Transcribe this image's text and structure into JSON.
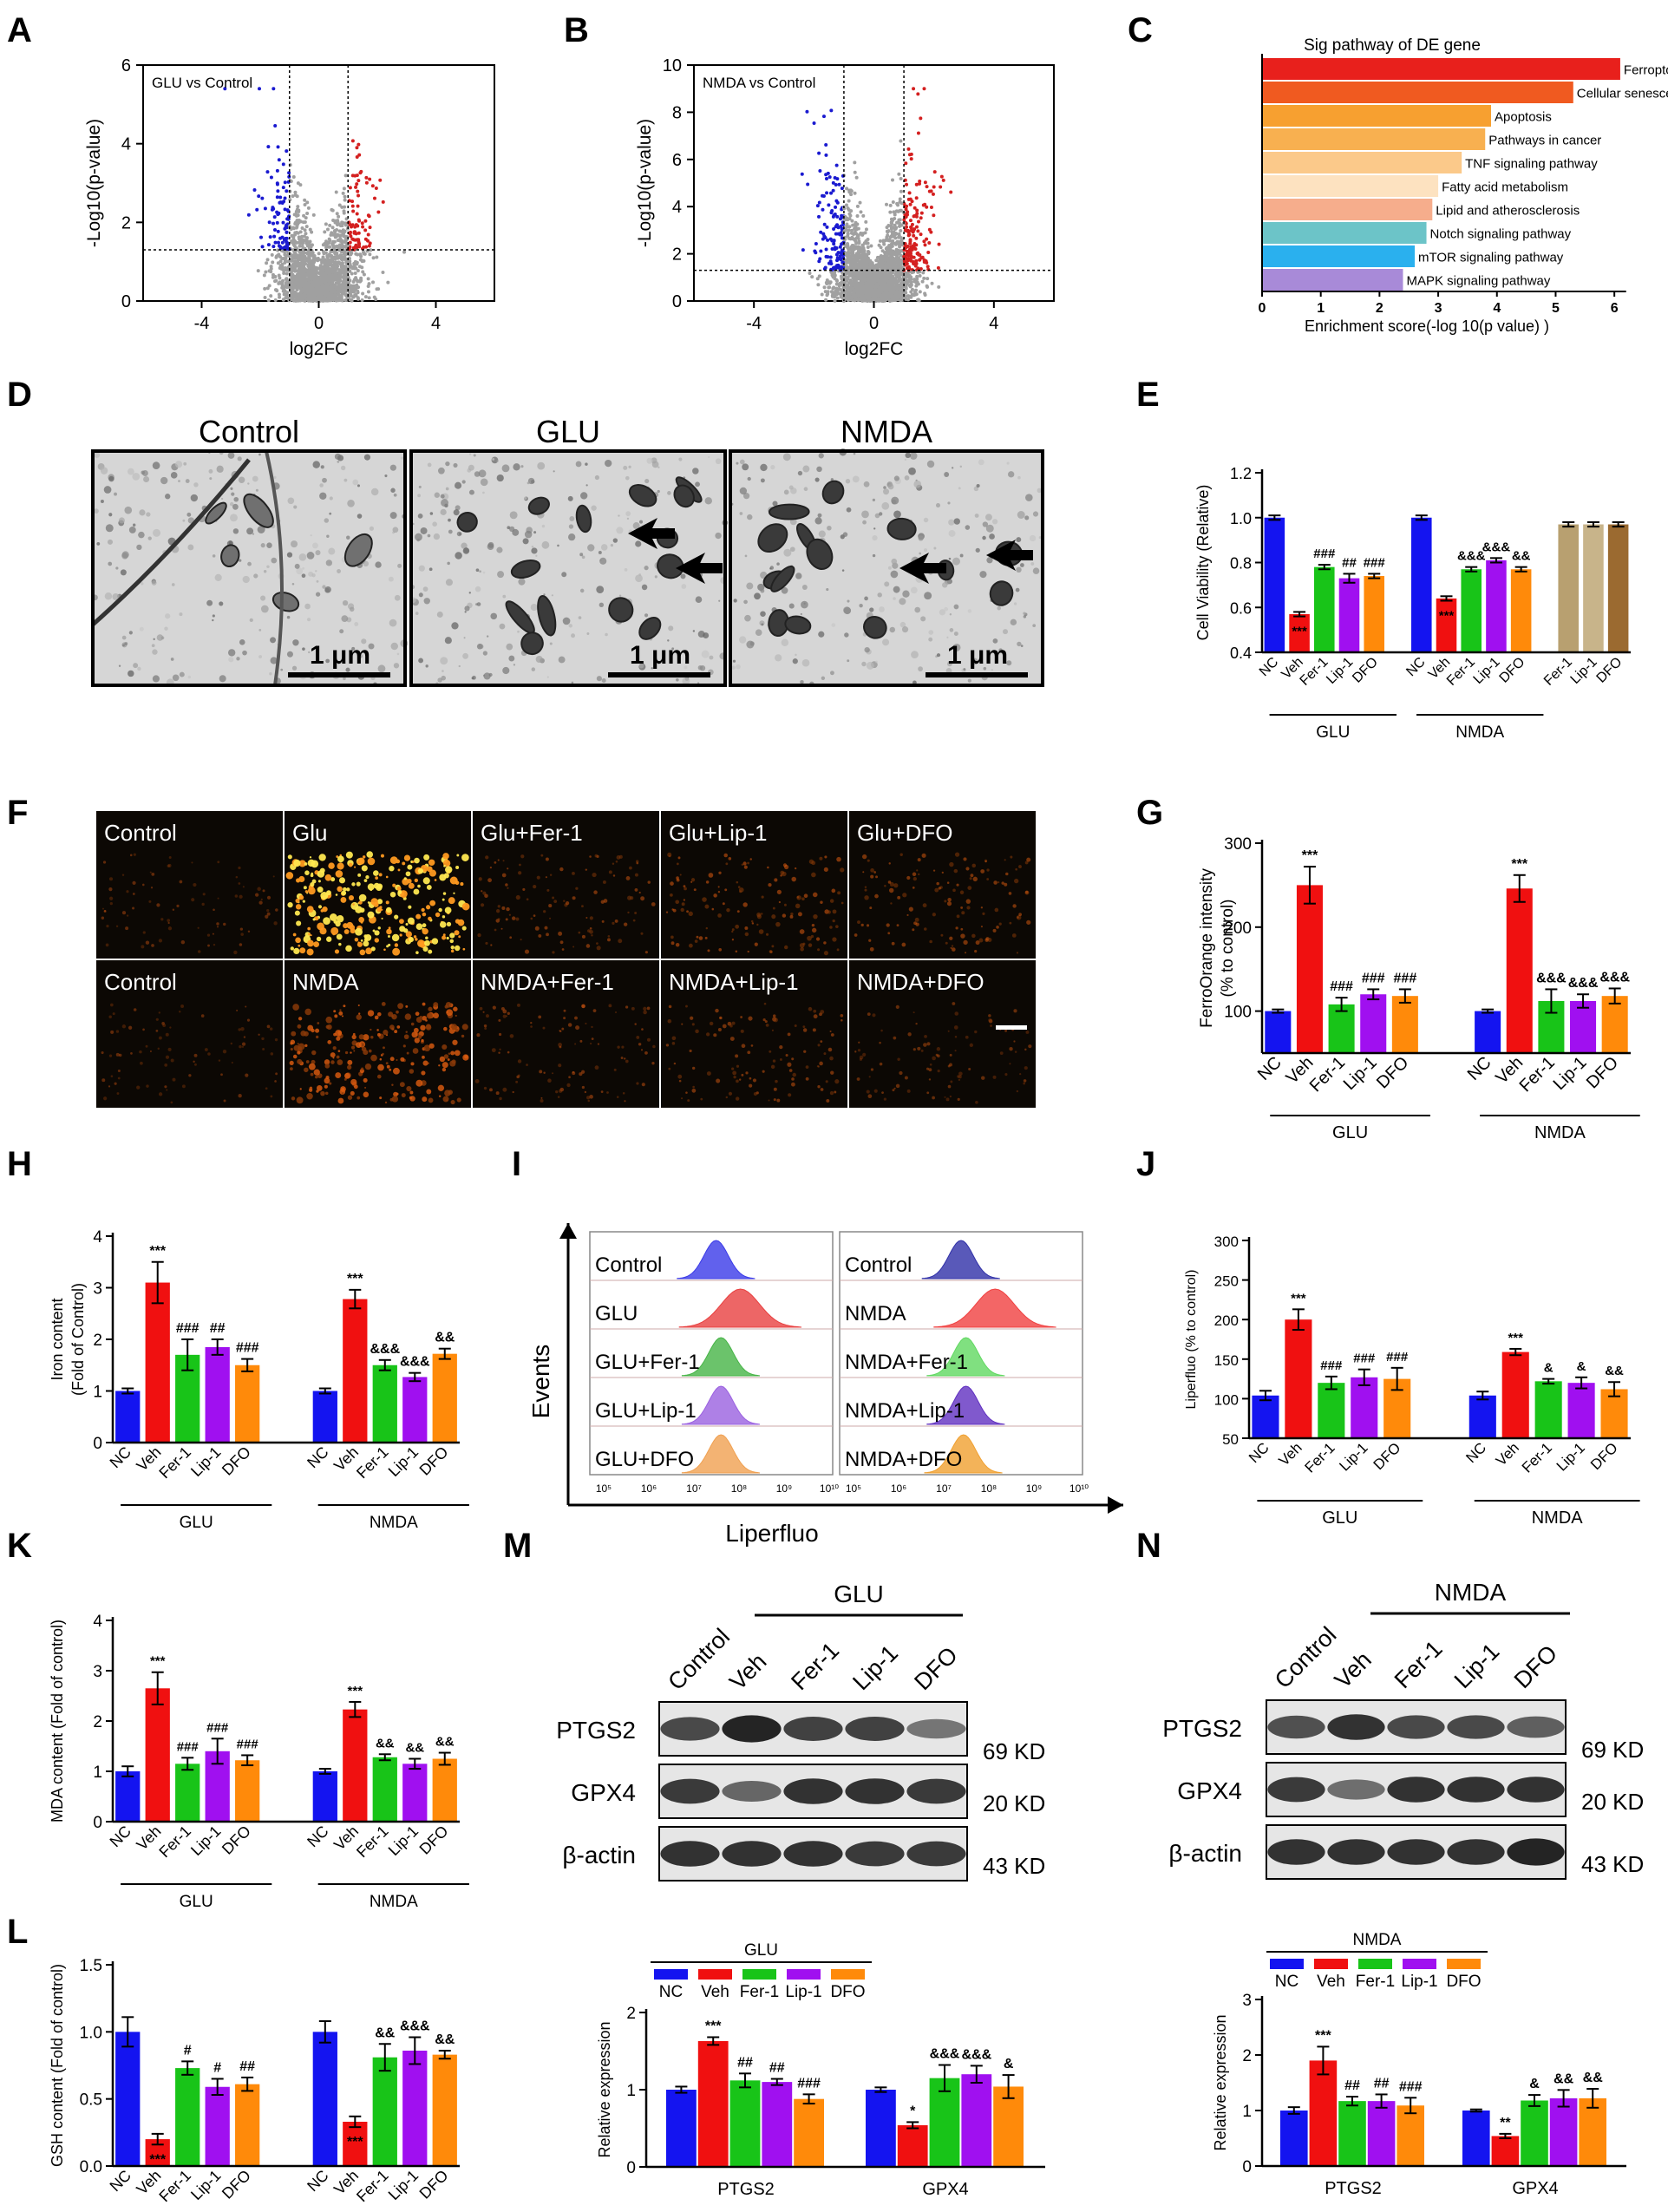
{
  "colors": {
    "nc": "#1414f0",
    "veh": "#f01010",
    "fer": "#18c418",
    "lip": "#a010f0",
    "dfo": "#ff8a0a",
    "fer_only": "#b8a070",
    "lip_only": "#c8b48a",
    "dfo_only": "#9b6a30",
    "up": "#d42020",
    "down": "#1a1ad0",
    "ns": "#a0a0a0"
  },
  "panels": {
    "A": "A",
    "B": "B",
    "C": "C",
    "D": "D",
    "E": "E",
    "F": "F",
    "G": "G",
    "H": "H",
    "I": "I",
    "J": "J",
    "K": "K",
    "L": "L",
    "M": "M",
    "N": "N"
  },
  "group_labels": {
    "glu": "GLU",
    "nmda": "NMDA"
  },
  "volcano": [
    {
      "title": "GLU vs Control",
      "xlabel": "log2FC",
      "ylabel": "-Log10(p-value)",
      "xticks": [
        "-4",
        "0",
        "4"
      ],
      "yticks": [
        "0",
        "2",
        "4",
        "6"
      ],
      "xlim": [
        -6,
        6
      ],
      "ylim": [
        0,
        6
      ]
    },
    {
      "title": "NMDA vs Control",
      "xlabel": "log2FC",
      "ylabel": "-Log10(p-value)",
      "xticks": [
        "-4",
        "0",
        "4"
      ],
      "yticks": [
        "0",
        "2",
        "4",
        "6",
        "8",
        "10"
      ],
      "xlim": [
        -6,
        6
      ],
      "ylim": [
        0,
        10
      ]
    }
  ],
  "chart_data": [
    {
      "panel": "C",
      "type": "bar",
      "orientation": "horizontal",
      "title": "Sig pathway of DE gene",
      "xlabel": "Enrichment score(-log 10(p value) )",
      "xticks": [
        "0",
        "1",
        "2",
        "3",
        "4",
        "5",
        "6"
      ],
      "xlim": [
        0,
        6.5
      ],
      "categories": [
        "Ferroptosis",
        "Cellular senescence",
        "Apoptosis",
        "Pathways in cancer",
        "TNF signaling pathway",
        "Fatty acid metabolism",
        "Lipid and atherosclerosis",
        "Notch signaling pathway",
        "mTOR signaling pathway",
        "MAPK signaling pathway"
      ],
      "values": [
        6.1,
        5.3,
        3.9,
        3.8,
        3.4,
        3.0,
        2.9,
        2.8,
        2.6,
        2.4
      ],
      "bar_colors": [
        "#e8201c",
        "#f05a20",
        "#f7a030",
        "#f8b050",
        "#fbc98a",
        "#fde2c0",
        "#f6ad8c",
        "#6cc4c8",
        "#2ab0ee",
        "#a88ad8"
      ]
    },
    {
      "panel": "E",
      "type": "bar",
      "ylabel": "Cell Viability (Relative)",
      "yticks": [
        "0.4",
        "0.6",
        "0.8",
        "1.0",
        "1.2"
      ],
      "ylim": [
        0.4,
        1.2
      ],
      "categories": [
        "NC",
        "Veh",
        "Fer-1",
        "Lip-1",
        "DFO",
        "NC",
        "Veh",
        "Fer-1",
        "Lip-1",
        "DFO",
        "Fer-1",
        "Lip-1",
        "DFO"
      ],
      "values": [
        1.0,
        0.57,
        0.78,
        0.73,
        0.74,
        1.0,
        0.64,
        0.77,
        0.81,
        0.77,
        0.97,
        0.97,
        0.97
      ],
      "errors": [
        0.01,
        0.01,
        0.01,
        0.02,
        0.01,
        0.01,
        0.01,
        0.01,
        0.01,
        0.01,
        0.01,
        0.01,
        0.01
      ],
      "sig": [
        "",
        "***",
        "###",
        "##",
        "###",
        "",
        "***",
        "&&&",
        "&&&",
        "&&",
        "",
        "",
        ""
      ]
    },
    {
      "panel": "G",
      "type": "bar",
      "ylabel": "FerroOrange intensity (% to control)",
      "yticks": [
        "100",
        "200",
        "300"
      ],
      "ylim": [
        50,
        300
      ],
      "categories": [
        "NC",
        "Veh",
        "Fer-1",
        "Lip-1",
        "DFO",
        "NC",
        "Veh",
        "Fer-1",
        "Lip-1",
        "DFO"
      ],
      "values": [
        100,
        250,
        108,
        120,
        118,
        100,
        246,
        112,
        112,
        118
      ],
      "errors": [
        2,
        22,
        8,
        6,
        8,
        2,
        16,
        14,
        8,
        9
      ],
      "sig": [
        "",
        "***",
        "###",
        "###",
        "###",
        "",
        "***",
        "&&&",
        "&&&",
        "&&&"
      ]
    },
    {
      "panel": "H",
      "type": "bar",
      "ylabel": "Iron content (Fold of Control)",
      "yticks": [
        "0",
        "1",
        "2",
        "3",
        "4"
      ],
      "ylim": [
        0,
        4
      ],
      "categories": [
        "NC",
        "Veh",
        "Fer-1",
        "Lip-1",
        "DFO",
        "NC",
        "Veh",
        "Fer-1",
        "Lip-1",
        "DFO"
      ],
      "values": [
        1.0,
        3.1,
        1.7,
        1.85,
        1.5,
        1.0,
        2.78,
        1.5,
        1.27,
        1.72
      ],
      "errors": [
        0.05,
        0.4,
        0.3,
        0.15,
        0.12,
        0.05,
        0.18,
        0.1,
        0.08,
        0.1
      ],
      "sig": [
        "",
        "***",
        "###",
        "##",
        "###",
        "",
        "***",
        "&&&",
        "&&&",
        "&&"
      ]
    },
    {
      "panel": "J",
      "type": "bar",
      "ylabel": "Liperfluo (% to control)",
      "yticks": [
        "50",
        "100",
        "150",
        "200",
        "250",
        "300"
      ],
      "ylim": [
        50,
        300
      ],
      "categories": [
        "NC",
        "Veh",
        "Fer-1",
        "Lip-1",
        "DFO",
        "NC",
        "Veh",
        "Fer-1",
        "Lip-1",
        "DFO"
      ],
      "values": [
        104,
        200,
        120,
        127,
        125,
        104,
        159,
        122,
        120,
        112
      ],
      "errors": [
        6,
        13,
        8,
        10,
        14,
        5,
        4,
        3,
        7,
        9
      ],
      "sig": [
        "",
        "***",
        "###",
        "###",
        "###",
        "",
        "***",
        "&",
        "&",
        "&&"
      ]
    },
    {
      "panel": "K",
      "type": "bar",
      "ylabel": "MDA content (Fold of control)",
      "yticks": [
        "0",
        "1",
        "2",
        "3",
        "4"
      ],
      "ylim": [
        0,
        4
      ],
      "categories": [
        "NC",
        "Veh",
        "Fer-1",
        "Lip-1",
        "DFO",
        "NC",
        "Veh",
        "Fer-1",
        "Lip-1",
        "DFO"
      ],
      "values": [
        1.0,
        2.65,
        1.15,
        1.4,
        1.22,
        1.0,
        2.23,
        1.28,
        1.15,
        1.25
      ],
      "errors": [
        0.1,
        0.32,
        0.12,
        0.25,
        0.1,
        0.05,
        0.15,
        0.06,
        0.1,
        0.12
      ],
      "sig": [
        "",
        "***",
        "###",
        "###",
        "###",
        "",
        "***",
        "&&",
        "&&",
        "&&"
      ]
    },
    {
      "panel": "L",
      "type": "bar",
      "ylabel": "GSH content (Fold of control)",
      "yticks": [
        "0.0",
        "0.5",
        "1.0",
        "1.5"
      ],
      "ylim": [
        0,
        1.5
      ],
      "categories": [
        "NC",
        "Veh",
        "Fer-1",
        "Lip-1",
        "DFO",
        "NC",
        "Veh",
        "Fer-1",
        "Lip-1",
        "DFO"
      ],
      "values": [
        1.0,
        0.2,
        0.73,
        0.59,
        0.61,
        1.0,
        0.33,
        0.81,
        0.86,
        0.83
      ],
      "errors": [
        0.11,
        0.04,
        0.05,
        0.06,
        0.05,
        0.08,
        0.04,
        0.1,
        0.1,
        0.03
      ],
      "sig": [
        "",
        "***",
        "#",
        "#",
        "##",
        "",
        "***",
        "&&",
        "&&&",
        "&&"
      ]
    },
    {
      "panel": "M",
      "type": "bar",
      "ylabel": "Relative expression",
      "yticks": [
        "0",
        "1",
        "2"
      ],
      "ylim": [
        0,
        2
      ],
      "legend_title": "GLU",
      "legend": [
        "NC",
        "Veh",
        "Fer-1",
        "Lip-1",
        "DFO"
      ],
      "categories": [
        "PTGS2",
        "GPX4"
      ],
      "series": [
        {
          "name": "NC",
          "values": [
            1.0,
            1.0
          ],
          "errors": [
            0.04,
            0.03
          ],
          "sig": [
            "",
            ""
          ]
        },
        {
          "name": "Veh",
          "values": [
            1.63,
            0.54
          ],
          "errors": [
            0.05,
            0.04
          ],
          "sig": [
            "***",
            "*"
          ]
        },
        {
          "name": "Fer-1",
          "values": [
            1.12,
            1.15
          ],
          "errors": [
            0.09,
            0.17
          ],
          "sig": [
            "##",
            "&&&"
          ]
        },
        {
          "name": "Lip-1",
          "values": [
            1.1,
            1.2
          ],
          "errors": [
            0.04,
            0.11
          ],
          "sig": [
            "##",
            "&&&"
          ]
        },
        {
          "name": "DFO",
          "values": [
            0.88,
            1.04
          ],
          "errors": [
            0.06,
            0.15
          ],
          "sig": [
            "###",
            "&"
          ]
        }
      ]
    },
    {
      "panel": "N",
      "type": "bar",
      "ylabel": "Relative expression",
      "yticks": [
        "0",
        "1",
        "2",
        "3"
      ],
      "ylim": [
        0,
        3
      ],
      "legend_title": "NMDA",
      "legend": [
        "NC",
        "Veh",
        "Fer-1",
        "Lip-1",
        "DFO"
      ],
      "categories": [
        "PTGS2",
        "GPX4"
      ],
      "series": [
        {
          "name": "NC",
          "values": [
            1.0,
            1.0
          ],
          "errors": [
            0.06,
            0.02
          ],
          "sig": [
            "",
            ""
          ]
        },
        {
          "name": "Veh",
          "values": [
            1.9,
            0.54
          ],
          "errors": [
            0.25,
            0.04
          ],
          "sig": [
            "***",
            "**"
          ]
        },
        {
          "name": "Fer-1",
          "values": [
            1.17,
            1.18
          ],
          "errors": [
            0.08,
            0.1
          ],
          "sig": [
            "##",
            "&"
          ]
        },
        {
          "name": "Lip-1",
          "values": [
            1.17,
            1.22
          ],
          "errors": [
            0.12,
            0.15
          ],
          "sig": [
            "##",
            "&&"
          ]
        },
        {
          "name": "DFO",
          "values": [
            1.09,
            1.22
          ],
          "errors": [
            0.14,
            0.17
          ],
          "sig": [
            "###",
            "&&"
          ]
        }
      ]
    }
  ],
  "tem": {
    "titles": [
      "Control",
      "GLU",
      "NMDA"
    ],
    "scalebar": "1 μm"
  },
  "fluor": {
    "row1": [
      "Control",
      "Glu",
      "Glu+Fer-1",
      "Glu+Lip-1",
      "Glu+DFO"
    ],
    "row2": [
      "Control",
      "NMDA",
      "NMDA+Fer-1",
      "NMDA+Lip-1",
      "NMDA+DFO"
    ]
  },
  "flow": {
    "ylabel": "Events",
    "xlabel": "Liperfluo",
    "left": [
      "Control",
      "GLU",
      "GLU+Fer-1",
      "GLU+Lip-1",
      "GLU+DFO"
    ],
    "right": [
      "Control",
      "NMDA",
      "NMDA+Fer-1",
      "NMDA+Lip-1",
      "NMDA+DFO"
    ],
    "ticks": [
      "10⁵",
      "10⁶",
      "10⁷",
      "10⁸",
      "10⁹",
      "10¹⁰"
    ],
    "peak_colors": [
      "#3a3ae8",
      "#e84040",
      "#46b446",
      "#9a60e0",
      "#f0a050"
    ],
    "right_peak_colors": [
      "#3030a8",
      "#f04040",
      "#60d860",
      "#6030c0",
      "#f0a030"
    ]
  },
  "blots": {
    "M": {
      "group": "GLU",
      "lanes": [
        "Control",
        "Veh",
        "Fer-1",
        "Lip-1",
        "DFO"
      ],
      "rows": [
        "PTGS2",
        "GPX4",
        "β-actin"
      ],
      "kd": [
        "69 KD",
        "20 KD",
        "43 KD"
      ]
    },
    "N": {
      "group": "NMDA",
      "lanes": [
        "Control",
        "Veh",
        "Fer-1",
        "Lip-1",
        "DFO"
      ],
      "rows": [
        "PTGS2",
        "GPX4",
        "β-actin"
      ],
      "kd": [
        "69 KD",
        "20 KD",
        "43 KD"
      ]
    }
  }
}
